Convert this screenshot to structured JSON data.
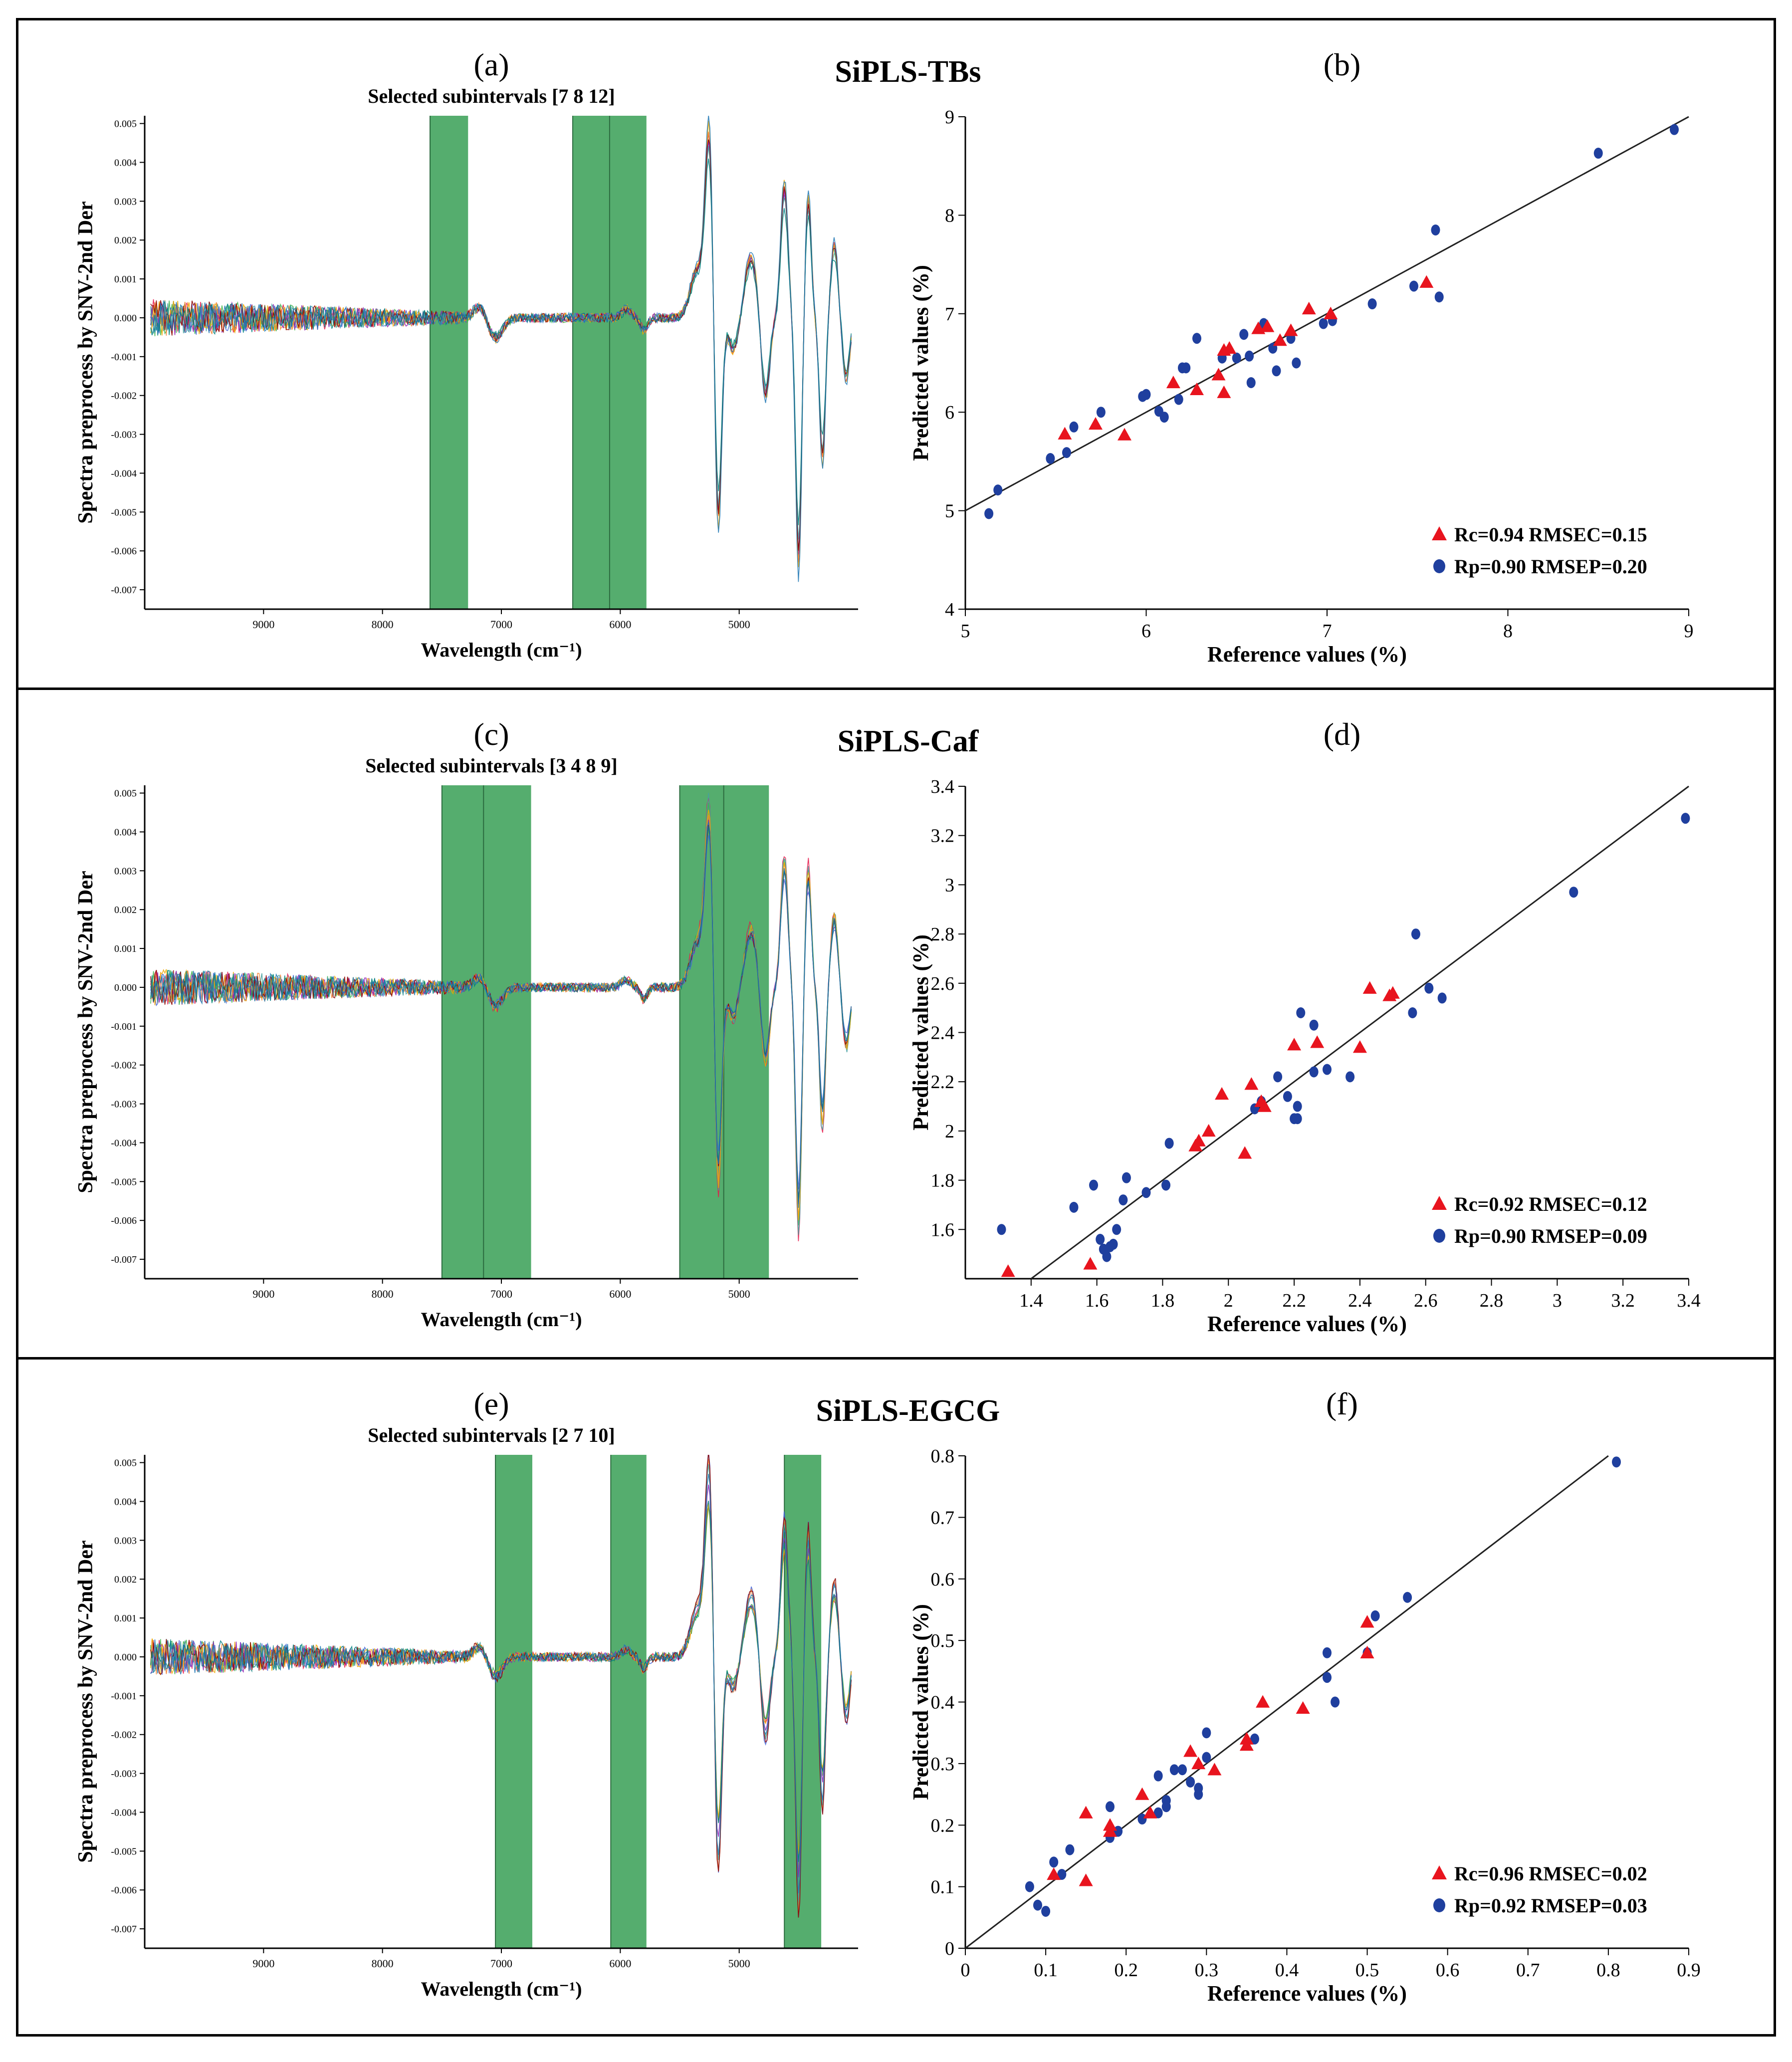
{
  "rows": [
    {
      "row_title": "SiPLS-TBs",
      "spectra": {
        "label": "(a)",
        "title": "Selected subintervals [7 8 12]",
        "xlabel": "Wavelength (cm⁻¹)",
        "ylabel": "Spectra preprocess by SNV-2nd Der",
        "xticks": [
          "9000",
          "8000",
          "7000",
          "6000",
          "5000"
        ],
        "yticks": [
          "0.005",
          "0.004",
          "0.003",
          "0.002",
          "0.001",
          "0.000",
          "-0.001",
          "-0.002",
          "-0.003",
          "-0.004",
          "-0.005",
          "-0.006",
          "-0.007"
        ],
        "xrange": [
          10000,
          4000
        ],
        "yrange": [
          -0.0075,
          0.0052
        ],
        "highlight_bands": [
          [
            7600,
            7280
          ],
          [
            6400,
            6090
          ],
          [
            6090,
            5780
          ]
        ]
      },
      "scatter": {
        "label": "(b)",
        "xlabel": "Reference values (%)",
        "ylabel": "Predicted values (%)",
        "xlim": [
          5,
          9
        ],
        "ylim": [
          4,
          9
        ],
        "xticks": [
          "5",
          "6",
          "7",
          "8",
          "9"
        ],
        "yticks": [
          "4",
          "5",
          "6",
          "7",
          "8",
          "9"
        ],
        "legend": [
          {
            "marker": "triangle",
            "color": "#e8141e",
            "text": "Rc=0.94  RMSEC=0.15"
          },
          {
            "marker": "circle",
            "color": "#1f3f9e",
            "text": "Rp=0.90  RMSEP=0.20"
          }
        ],
        "calibration": [
          [
            5.55,
            5.78
          ],
          [
            5.72,
            5.88
          ],
          [
            5.88,
            5.77
          ],
          [
            6.15,
            6.3
          ],
          [
            6.28,
            6.23
          ],
          [
            6.4,
            6.38
          ],
          [
            6.43,
            6.63
          ],
          [
            6.46,
            6.65
          ],
          [
            6.43,
            6.2
          ],
          [
            6.62,
            6.85
          ],
          [
            6.67,
            6.87
          ],
          [
            6.74,
            6.73
          ],
          [
            6.8,
            6.83
          ],
          [
            6.9,
            7.05
          ],
          [
            7.02,
            7.0
          ],
          [
            7.55,
            7.32
          ]
        ],
        "prediction": [
          [
            5.13,
            4.97
          ],
          [
            5.18,
            5.21
          ],
          [
            5.47,
            5.53
          ],
          [
            5.56,
            5.59
          ],
          [
            5.6,
            5.85
          ],
          [
            5.75,
            6.0
          ],
          [
            5.98,
            6.16
          ],
          [
            6.0,
            6.18
          ],
          [
            6.07,
            6.01
          ],
          [
            6.1,
            5.95
          ],
          [
            6.18,
            6.13
          ],
          [
            6.2,
            6.45
          ],
          [
            6.22,
            6.45
          ],
          [
            6.28,
            6.75
          ],
          [
            6.42,
            6.55
          ],
          [
            6.5,
            6.55
          ],
          [
            6.54,
            6.79
          ],
          [
            6.57,
            6.57
          ],
          [
            6.58,
            6.3
          ],
          [
            6.65,
            6.9
          ],
          [
            6.7,
            6.65
          ],
          [
            6.72,
            6.42
          ],
          [
            6.8,
            6.75
          ],
          [
            6.83,
            6.5
          ],
          [
            6.98,
            6.9
          ],
          [
            7.03,
            6.93
          ],
          [
            7.25,
            7.1
          ],
          [
            7.48,
            7.28
          ],
          [
            7.6,
            7.85
          ],
          [
            7.62,
            7.17
          ],
          [
            8.5,
            8.63
          ],
          [
            8.92,
            8.87
          ]
        ]
      }
    },
    {
      "row_title": "SiPLS-Caf",
      "spectra": {
        "label": "(c)",
        "title": "Selected subintervals [3 4 8 9]",
        "xlabel": "Wavelength (cm⁻¹)",
        "ylabel": "Spectra preprocess by SNV-2nd Der",
        "xticks": [
          "9000",
          "8000",
          "7000",
          "6000",
          "5000"
        ],
        "yticks": [
          "0.005",
          "0.004",
          "0.003",
          "0.002",
          "0.001",
          "0.000",
          "-0.001",
          "-0.002",
          "-0.003",
          "-0.004",
          "-0.005",
          "-0.006",
          "-0.007"
        ],
        "xrange": [
          10000,
          4000
        ],
        "yrange": [
          -0.0075,
          0.0052
        ],
        "highlight_bands": [
          [
            7500,
            7150
          ],
          [
            7150,
            6750
          ],
          [
            5500,
            5130
          ],
          [
            5130,
            4750
          ]
        ]
      },
      "scatter": {
        "label": "(d)",
        "xlabel": "Reference values (%)",
        "ylabel": "Predicted values (%)",
        "xlim": [
          1.2,
          3.4
        ],
        "ylim": [
          1.4,
          3.4
        ],
        "xticks": [
          "1.4",
          "1.6",
          "1.8",
          "2",
          "2.2",
          "2.4",
          "2.6",
          "2.8",
          "3",
          "3.2",
          "3.4"
        ],
        "yticks": [
          "1.6",
          "1.8",
          "2",
          "2.2",
          "2.4",
          "2.6",
          "2.8",
          "3",
          "3.2",
          "3.4"
        ],
        "legend": [
          {
            "marker": "triangle",
            "color": "#e8141e",
            "text": "Rc=0.92  RMSEC=0.12"
          },
          {
            "marker": "circle",
            "color": "#1f3f9e",
            "text": "Rp=0.90  RMSEP=0.09"
          }
        ],
        "calibration": [
          [
            1.33,
            1.43
          ],
          [
            1.58,
            1.46
          ],
          [
            1.9,
            1.94
          ],
          [
            1.91,
            1.96
          ],
          [
            1.94,
            2.0
          ],
          [
            1.98,
            2.15
          ],
          [
            2.05,
            1.91
          ],
          [
            2.07,
            2.19
          ],
          [
            2.1,
            2.12
          ],
          [
            2.11,
            2.1
          ],
          [
            2.2,
            2.35
          ],
          [
            2.27,
            2.36
          ],
          [
            2.4,
            2.34
          ],
          [
            2.43,
            2.58
          ],
          [
            2.49,
            2.55
          ],
          [
            2.5,
            2.56
          ]
        ],
        "prediction": [
          [
            1.31,
            1.6
          ],
          [
            1.53,
            1.69
          ],
          [
            1.59,
            1.78
          ],
          [
            1.61,
            1.56
          ],
          [
            1.62,
            1.52
          ],
          [
            1.63,
            1.49
          ],
          [
            1.64,
            1.53
          ],
          [
            1.65,
            1.54
          ],
          [
            1.66,
            1.6
          ],
          [
            1.68,
            1.72
          ],
          [
            1.69,
            1.81
          ],
          [
            1.75,
            1.75
          ],
          [
            1.81,
            1.78
          ],
          [
            1.82,
            1.95
          ],
          [
            2.08,
            2.09
          ],
          [
            2.1,
            2.12
          ],
          [
            2.15,
            2.22
          ],
          [
            2.18,
            2.14
          ],
          [
            2.2,
            2.05
          ],
          [
            2.21,
            2.05
          ],
          [
            2.21,
            2.1
          ],
          [
            2.22,
            2.48
          ],
          [
            2.26,
            2.43
          ],
          [
            2.26,
            2.24
          ],
          [
            2.3,
            2.25
          ],
          [
            2.37,
            2.22
          ],
          [
            2.56,
            2.48
          ],
          [
            2.57,
            2.8
          ],
          [
            2.61,
            2.58
          ],
          [
            2.65,
            2.54
          ],
          [
            3.05,
            2.97
          ],
          [
            3.39,
            3.27
          ]
        ]
      }
    },
    {
      "row_title": "SiPLS-EGCG",
      "spectra": {
        "label": "(e)",
        "title": "Selected subintervals [2 7 10]",
        "xlabel": "Wavelength (cm⁻¹)",
        "ylabel": "Spectra preprocess by SNV-2nd Der",
        "xticks": [
          "9000",
          "8000",
          "7000",
          "6000",
          "5000"
        ],
        "yticks": [
          "0.005",
          "0.004",
          "0.003",
          "0.002",
          "0.001",
          "0.000",
          "-0.001",
          "-0.002",
          "-0.003",
          "-0.004",
          "-0.005",
          "-0.006",
          "-0.007"
        ],
        "xrange": [
          10000,
          4000
        ],
        "yrange": [
          -0.0075,
          0.0052
        ],
        "highlight_bands": [
          [
            7050,
            6740
          ],
          [
            6080,
            5780
          ],
          [
            4620,
            4310
          ]
        ]
      },
      "scatter": {
        "label": "(f)",
        "xlabel": "Reference values (%)",
        "ylabel": "Predicted values (%)",
        "xlim": [
          0,
          0.9
        ],
        "ylim": [
          0,
          0.8
        ],
        "xticks": [
          "0",
          "0.1",
          "0.2",
          "0.3",
          "0.4",
          "0.5",
          "0.6",
          "0.7",
          "0.8",
          "0.9"
        ],
        "yticks": [
          "0",
          "0.1",
          "0.2",
          "0.3",
          "0.4",
          "0.5",
          "0.6",
          "0.7",
          "0.8"
        ],
        "legend": [
          {
            "marker": "triangle",
            "color": "#e8141e",
            "text": "Rc=0.96  RMSEC=0.02"
          },
          {
            "marker": "circle",
            "color": "#1f3f9e",
            "text": "Rp=0.92  RMSEP=0.03"
          }
        ],
        "calibration": [
          [
            0.11,
            0.12
          ],
          [
            0.15,
            0.22
          ],
          [
            0.15,
            0.11
          ],
          [
            0.18,
            0.2
          ],
          [
            0.18,
            0.19
          ],
          [
            0.22,
            0.25
          ],
          [
            0.23,
            0.22
          ],
          [
            0.28,
            0.32
          ],
          [
            0.29,
            0.3
          ],
          [
            0.31,
            0.29
          ],
          [
            0.35,
            0.34
          ],
          [
            0.35,
            0.33
          ],
          [
            0.37,
            0.4
          ],
          [
            0.42,
            0.39
          ],
          [
            0.5,
            0.53
          ],
          [
            0.5,
            0.48
          ]
        ],
        "prediction": [
          [
            0.08,
            0.1
          ],
          [
            0.09,
            0.07
          ],
          [
            0.1,
            0.06
          ],
          [
            0.11,
            0.14
          ],
          [
            0.12,
            0.12
          ],
          [
            0.13,
            0.16
          ],
          [
            0.18,
            0.23
          ],
          [
            0.18,
            0.18
          ],
          [
            0.19,
            0.19
          ],
          [
            0.22,
            0.21
          ],
          [
            0.24,
            0.22
          ],
          [
            0.24,
            0.28
          ],
          [
            0.25,
            0.24
          ],
          [
            0.25,
            0.23
          ],
          [
            0.26,
            0.29
          ],
          [
            0.27,
            0.29
          ],
          [
            0.28,
            0.27
          ],
          [
            0.29,
            0.26
          ],
          [
            0.29,
            0.25
          ],
          [
            0.3,
            0.35
          ],
          [
            0.3,
            0.31
          ],
          [
            0.36,
            0.34
          ],
          [
            0.45,
            0.48
          ],
          [
            0.45,
            0.44
          ],
          [
            0.46,
            0.4
          ],
          [
            0.5,
            0.48
          ],
          [
            0.51,
            0.54
          ],
          [
            0.55,
            0.57
          ],
          [
            0.81,
            0.79
          ]
        ]
      }
    }
  ]
}
